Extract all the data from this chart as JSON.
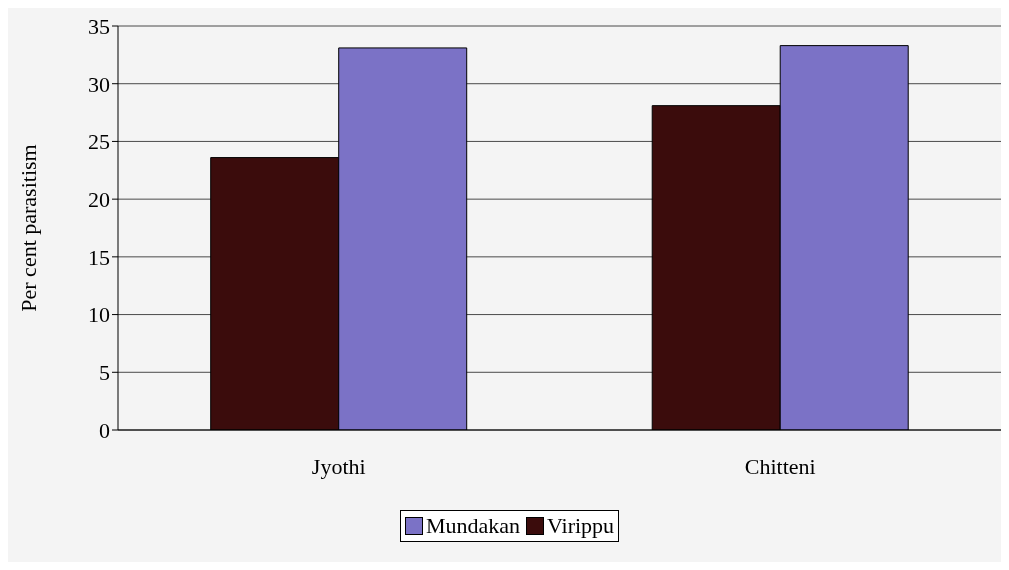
{
  "chart_data": {
    "type": "bar",
    "ylabel": "Per cent parasitism",
    "categories": [
      "Jyothi",
      "Chitteni"
    ],
    "series": [
      {
        "name": "Virippu",
        "color": "#3b0c0c",
        "values": [
          23.6,
          28.1
        ]
      },
      {
        "name": "Mundakan",
        "color": "#7b72c6",
        "values": [
          33.1,
          33.3
        ]
      }
    ],
    "ylim": [
      0,
      35
    ],
    "yticks": [
      0,
      5,
      10,
      15,
      20,
      25,
      30,
      35
    ],
    "grid": "y",
    "legend": "bottom"
  }
}
